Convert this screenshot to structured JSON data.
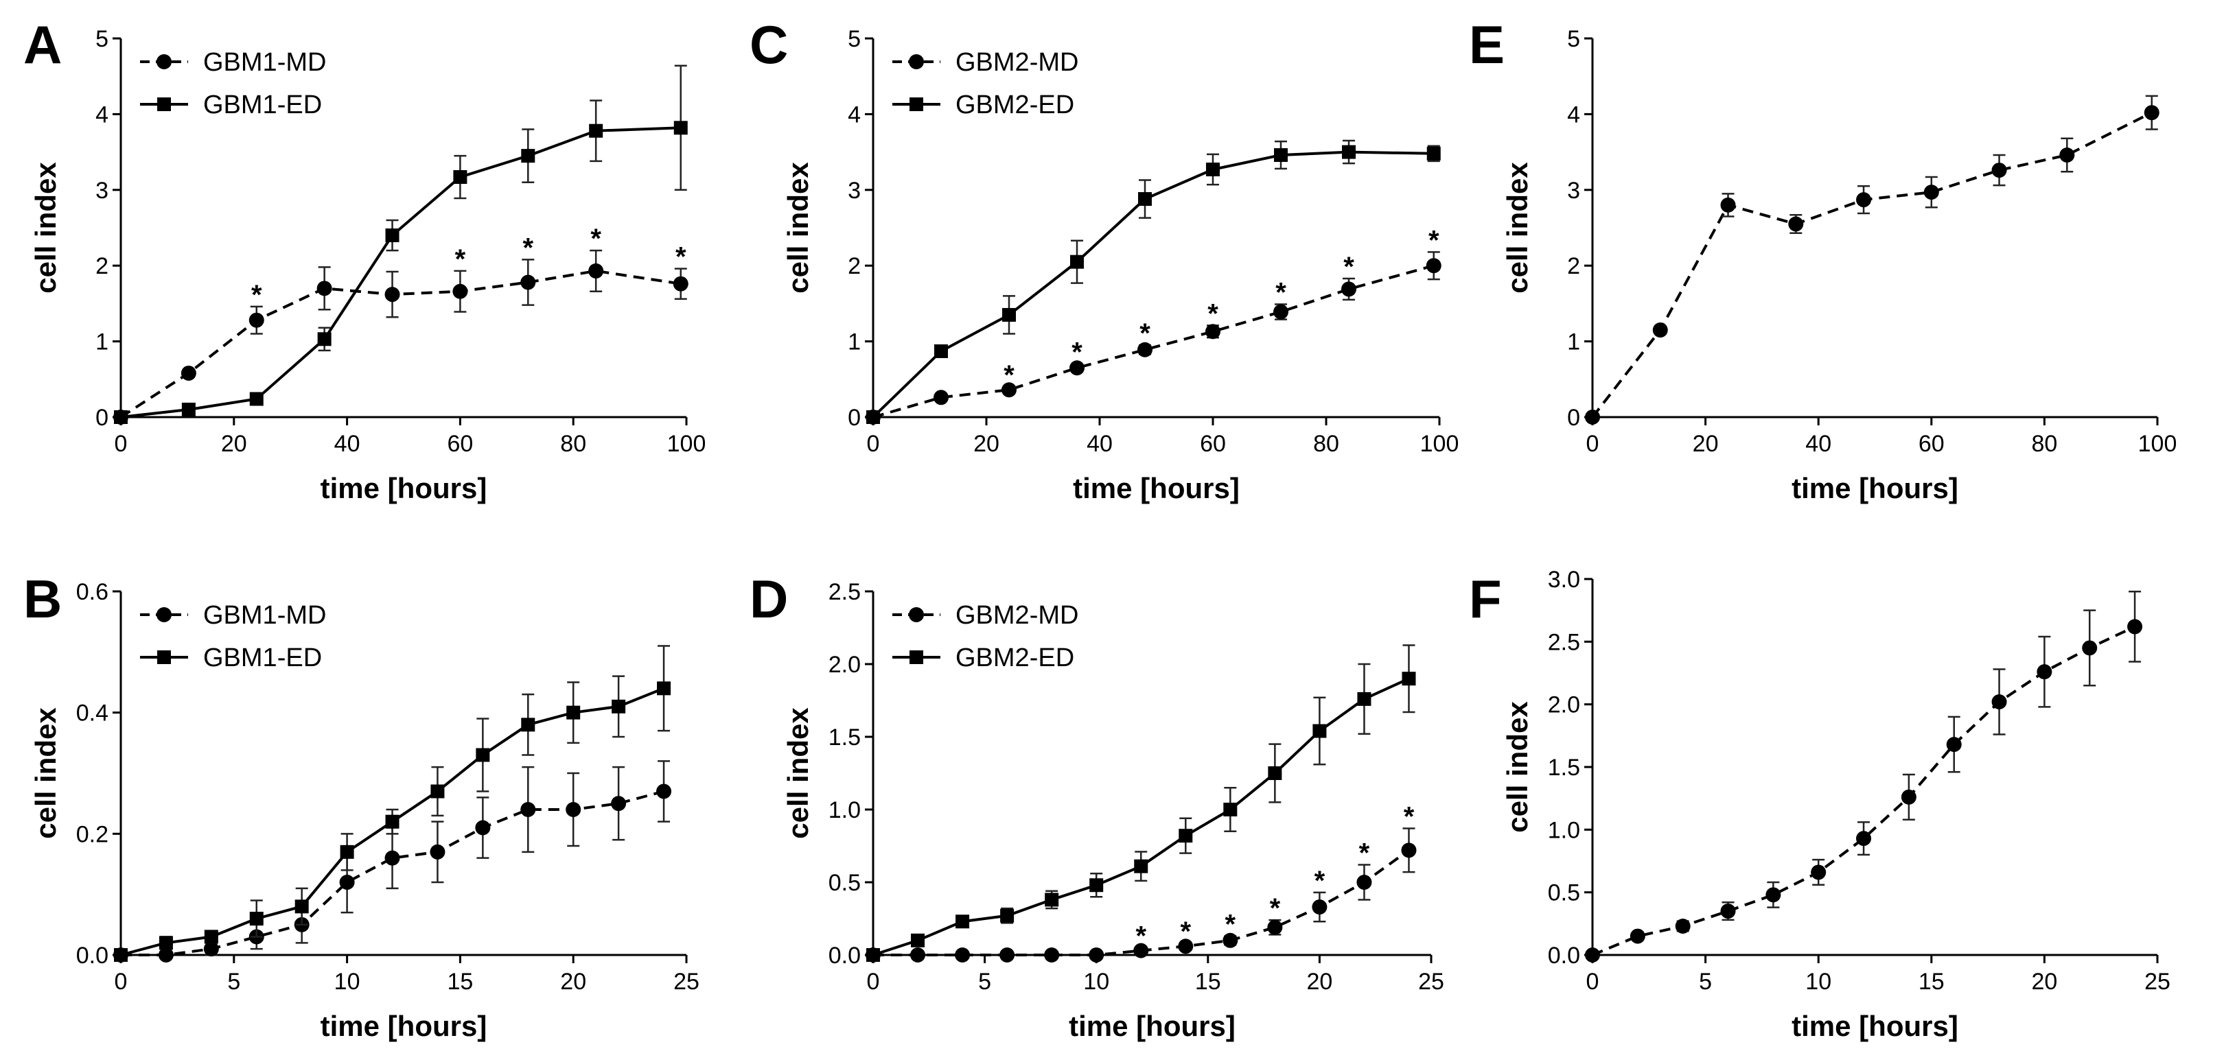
{
  "chart_data": [
    {
      "panel": "A",
      "type": "line",
      "xlabel": "time [hours]",
      "ylabel": "cell index",
      "xlim": [
        0,
        100
      ],
      "ylim": [
        0,
        5
      ],
      "xticks": [
        0,
        20,
        40,
        60,
        80,
        100
      ],
      "yticks": [
        0,
        1,
        2,
        3,
        4,
        5
      ],
      "legend": "top-left",
      "series": [
        {
          "name": "GBM1-MD",
          "style": "dashed",
          "marker": "circle",
          "x": [
            0,
            12,
            24,
            36,
            48,
            60,
            72,
            84,
            99
          ],
          "values": [
            0,
            0.58,
            1.28,
            1.7,
            1.62,
            1.66,
            1.78,
            1.93,
            1.76
          ],
          "errors": [
            0,
            0.05,
            0.18,
            0.28,
            0.3,
            0.27,
            0.3,
            0.27,
            0.2
          ],
          "stars": [
            24,
            60,
            72,
            84,
            99
          ]
        },
        {
          "name": "GBM1-ED",
          "style": "solid",
          "marker": "square",
          "x": [
            0,
            12,
            24,
            36,
            48,
            60,
            72,
            84,
            99
          ],
          "values": [
            0,
            0.1,
            0.24,
            1.03,
            2.4,
            3.17,
            3.45,
            3.78,
            3.82
          ],
          "errors": [
            0,
            0.03,
            0.05,
            0.15,
            0.2,
            0.28,
            0.35,
            0.4,
            0.82
          ],
          "stars": []
        }
      ]
    },
    {
      "panel": "B",
      "type": "line",
      "xlabel": "time [hours]",
      "ylabel": "cell index",
      "xlim": [
        0,
        25
      ],
      "ylim": [
        0,
        0.6
      ],
      "xticks": [
        0,
        5,
        10,
        15,
        20,
        25
      ],
      "yticks": [
        0.0,
        0.2,
        0.4,
        0.6
      ],
      "yformat": 1,
      "legend": "top-left",
      "series": [
        {
          "name": "GBM1-MD",
          "style": "dashed",
          "marker": "circle",
          "x": [
            0,
            2,
            4,
            6,
            8,
            10,
            12,
            14,
            16,
            18,
            20,
            22,
            24
          ],
          "values": [
            0,
            0.0,
            0.01,
            0.03,
            0.05,
            0.12,
            0.16,
            0.17,
            0.21,
            0.24,
            0.24,
            0.25,
            0.27
          ],
          "errors": [
            0,
            0.005,
            0.01,
            0.02,
            0.03,
            0.05,
            0.05,
            0.05,
            0.05,
            0.07,
            0.06,
            0.06,
            0.05
          ],
          "stars": []
        },
        {
          "name": "GBM1-ED",
          "style": "solid",
          "marker": "square",
          "x": [
            0,
            2,
            4,
            6,
            8,
            10,
            12,
            14,
            16,
            18,
            20,
            22,
            24
          ],
          "values": [
            0,
            0.02,
            0.03,
            0.06,
            0.08,
            0.17,
            0.22,
            0.27,
            0.33,
            0.38,
            0.4,
            0.41,
            0.44
          ],
          "errors": [
            0,
            0.01,
            0.01,
            0.03,
            0.03,
            0.03,
            0.02,
            0.04,
            0.06,
            0.05,
            0.05,
            0.05,
            0.07
          ],
          "stars": []
        }
      ]
    },
    {
      "panel": "C",
      "type": "line",
      "xlabel": "time [hours]",
      "ylabel": "cell index",
      "xlim": [
        0,
        100
      ],
      "ylim": [
        0,
        5
      ],
      "xticks": [
        0,
        20,
        40,
        60,
        80,
        100
      ],
      "yticks": [
        0,
        1,
        2,
        3,
        4,
        5
      ],
      "legend": "top-left",
      "series": [
        {
          "name": "GBM2-MD",
          "style": "dashed",
          "marker": "circle",
          "x": [
            0,
            12,
            24,
            36,
            48,
            60,
            72,
            84,
            99
          ],
          "values": [
            0,
            0.26,
            0.36,
            0.65,
            0.89,
            1.13,
            1.39,
            1.69,
            2.0
          ],
          "errors": [
            0,
            0.03,
            0.04,
            0.05,
            0.06,
            0.08,
            0.1,
            0.14,
            0.18
          ],
          "stars": [
            24,
            36,
            48,
            60,
            72,
            84,
            99
          ]
        },
        {
          "name": "GBM2-ED",
          "style": "solid",
          "marker": "square",
          "x": [
            0,
            12,
            24,
            36,
            48,
            60,
            72,
            84,
            99
          ],
          "values": [
            0,
            0.87,
            1.35,
            2.05,
            2.88,
            3.27,
            3.46,
            3.5,
            3.48
          ],
          "errors": [
            0,
            0.05,
            0.25,
            0.28,
            0.25,
            0.2,
            0.18,
            0.15,
            0.1
          ],
          "stars": []
        }
      ]
    },
    {
      "panel": "D",
      "type": "line",
      "xlabel": "time [hours]",
      "ylabel": "cell index",
      "xlim": [
        0,
        25
      ],
      "ylim": [
        0,
        2.5
      ],
      "xticks": [
        0,
        5,
        10,
        15,
        20,
        25
      ],
      "yticks": [
        0.0,
        0.5,
        1.0,
        1.5,
        2.0,
        2.5
      ],
      "yformat": 1,
      "legend": "top-left",
      "series": [
        {
          "name": "GBM2-MD",
          "style": "dashed",
          "marker": "circle",
          "x": [
            0,
            2,
            4,
            6,
            8,
            10,
            12,
            14,
            16,
            18,
            20,
            22,
            24
          ],
          "values": [
            0,
            0.0,
            0.0,
            0.0,
            0.0,
            0.0,
            0.03,
            0.06,
            0.1,
            0.19,
            0.33,
            0.5,
            0.72
          ],
          "errors": [
            0,
            0,
            0,
            0,
            0,
            0,
            0.02,
            0.02,
            0.03,
            0.05,
            0.1,
            0.12,
            0.15
          ],
          "stars": [
            12,
            14,
            16,
            18,
            20,
            22,
            24
          ]
        },
        {
          "name": "GBM2-ED",
          "style": "solid",
          "marker": "square",
          "x": [
            0,
            2,
            4,
            6,
            8,
            10,
            12,
            14,
            16,
            18,
            20,
            22,
            24
          ],
          "values": [
            0,
            0.1,
            0.23,
            0.27,
            0.38,
            0.48,
            0.61,
            0.82,
            1.0,
            1.25,
            1.54,
            1.76,
            1.9
          ],
          "errors": [
            0,
            0.02,
            0.03,
            0.05,
            0.06,
            0.08,
            0.1,
            0.12,
            0.15,
            0.2,
            0.23,
            0.24,
            0.23
          ],
          "stars": []
        }
      ]
    },
    {
      "panel": "E",
      "type": "line",
      "xlabel": "time [hours]",
      "ylabel": "cell index",
      "xlim": [
        0,
        100
      ],
      "ylim": [
        0,
        5
      ],
      "xticks": [
        0,
        20,
        40,
        60,
        80,
        100
      ],
      "yticks": [
        0,
        1,
        2,
        3,
        4,
        5
      ],
      "legend": "none",
      "series": [
        {
          "name": "",
          "style": "dashed",
          "marker": "circle",
          "x": [
            0,
            12,
            24,
            36,
            48,
            60,
            72,
            84,
            99
          ],
          "values": [
            0,
            1.15,
            2.8,
            2.55,
            2.87,
            2.97,
            3.26,
            3.46,
            4.02
          ],
          "errors": [
            0,
            0.05,
            0.15,
            0.12,
            0.18,
            0.2,
            0.2,
            0.22,
            0.22
          ],
          "stars": []
        }
      ]
    },
    {
      "panel": "F",
      "type": "line",
      "xlabel": "time [hours]",
      "ylabel": "cell index",
      "xlim": [
        0,
        25
      ],
      "ylim": [
        0,
        3.0
      ],
      "xticks": [
        0,
        5,
        10,
        15,
        20,
        25
      ],
      "yticks": [
        0.0,
        0.5,
        1.0,
        1.5,
        2.0,
        2.5,
        3.0
      ],
      "yformat": 1,
      "legend": "none",
      "series": [
        {
          "name": "",
          "style": "dashed",
          "marker": "circle",
          "x": [
            0,
            2,
            4,
            6,
            8,
            10,
            12,
            14,
            16,
            18,
            20,
            22,
            24
          ],
          "values": [
            0,
            0.15,
            0.23,
            0.35,
            0.48,
            0.66,
            0.93,
            1.26,
            1.68,
            2.02,
            2.26,
            2.45,
            2.62
          ],
          "errors": [
            0,
            0.03,
            0.04,
            0.07,
            0.1,
            0.1,
            0.13,
            0.18,
            0.22,
            0.26,
            0.28,
            0.3,
            0.28
          ],
          "stars": []
        }
      ]
    }
  ]
}
